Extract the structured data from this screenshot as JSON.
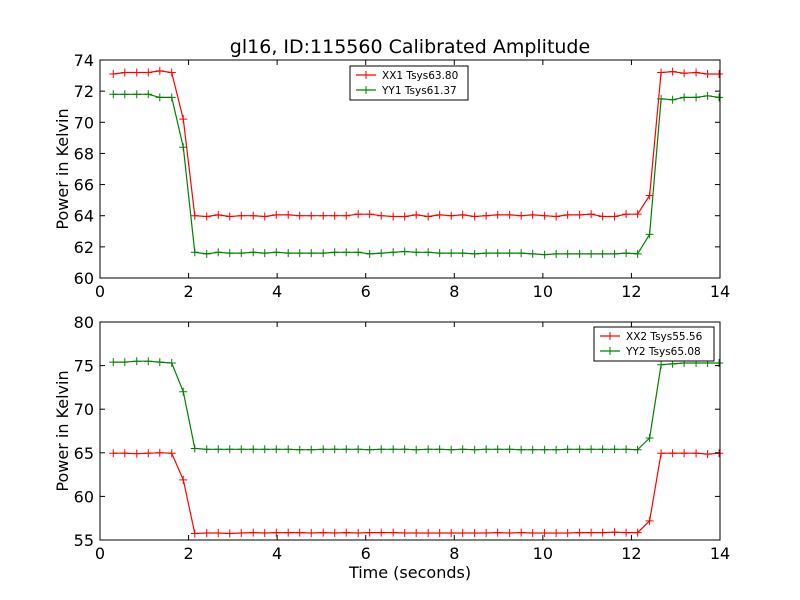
{
  "title": "gl16, ID:115560 Calibrated Amplitude",
  "chart_data": [
    {
      "type": "line",
      "title": "gl16, ID:115560 Calibrated Amplitude",
      "xlabel": "",
      "ylabel": "Power in Kelvin",
      "xlim": [
        0,
        14
      ],
      "ylim": [
        60,
        74
      ],
      "xticks": [
        0,
        2,
        4,
        6,
        8,
        10,
        12,
        14
      ],
      "yticks": [
        60,
        62,
        64,
        66,
        68,
        70,
        72,
        74
      ],
      "grid": false,
      "legend_position": "top-center",
      "x": [
        0.3,
        0.56,
        0.83,
        1.09,
        1.35,
        1.62,
        1.88,
        2.14,
        2.41,
        2.67,
        2.93,
        3.19,
        3.46,
        3.72,
        3.98,
        4.25,
        4.51,
        4.77,
        5.04,
        5.3,
        5.56,
        5.83,
        6.09,
        6.35,
        6.62,
        6.88,
        7.14,
        7.41,
        7.67,
        7.93,
        8.19,
        8.46,
        8.72,
        8.98,
        9.25,
        9.51,
        9.77,
        10.04,
        10.3,
        10.56,
        10.83,
        11.09,
        11.35,
        11.62,
        11.88,
        12.14,
        12.41,
        12.67,
        12.93,
        13.19,
        13.46,
        13.72,
        13.98
      ],
      "series": [
        {
          "name": "XX1 Tsys63.80",
          "color": "#ff0000",
          "values": [
            73.1,
            73.2,
            73.2,
            73.2,
            73.3,
            73.2,
            70.2,
            64.0,
            63.95,
            64.05,
            63.95,
            64.0,
            64.0,
            63.95,
            64.05,
            64.05,
            64.0,
            64.0,
            64.0,
            64.0,
            64.0,
            64.1,
            64.1,
            64.0,
            63.95,
            63.95,
            64.05,
            63.95,
            64.05,
            64.0,
            64.05,
            63.95,
            64.0,
            64.05,
            64.05,
            64.0,
            64.05,
            64.0,
            63.95,
            64.05,
            64.05,
            64.1,
            63.95,
            63.95,
            64.1,
            64.1,
            65.3,
            73.2,
            73.25,
            73.15,
            73.2,
            73.1,
            73.1
          ]
        },
        {
          "name": "YY1 Tsys61.37",
          "color": "#008000",
          "values": [
            71.8,
            71.8,
            71.8,
            71.8,
            71.6,
            71.6,
            68.4,
            61.65,
            61.55,
            61.65,
            61.6,
            61.6,
            61.65,
            61.6,
            61.65,
            61.6,
            61.6,
            61.6,
            61.6,
            61.65,
            61.65,
            61.65,
            61.55,
            61.6,
            61.65,
            61.7,
            61.65,
            61.65,
            61.6,
            61.6,
            61.6,
            61.55,
            61.6,
            61.6,
            61.6,
            61.6,
            61.55,
            61.5,
            61.55,
            61.55,
            61.55,
            61.55,
            61.55,
            61.55,
            61.6,
            61.55,
            62.8,
            71.5,
            71.45,
            71.6,
            71.6,
            71.7,
            71.6
          ]
        }
      ]
    },
    {
      "type": "line",
      "title": "",
      "xlabel": "Time (seconds)",
      "ylabel": "Power in Kelvin",
      "xlim": [
        0,
        14
      ],
      "ylim": [
        55,
        80
      ],
      "xticks": [
        0,
        2,
        4,
        6,
        8,
        10,
        12,
        14
      ],
      "yticks": [
        55,
        60,
        65,
        70,
        75,
        80
      ],
      "grid": false,
      "legend_position": "top-right",
      "x": [
        0.3,
        0.56,
        0.83,
        1.09,
        1.35,
        1.62,
        1.88,
        2.14,
        2.41,
        2.67,
        2.93,
        3.19,
        3.46,
        3.72,
        3.98,
        4.25,
        4.51,
        4.77,
        5.04,
        5.3,
        5.56,
        5.83,
        6.09,
        6.35,
        6.62,
        6.88,
        7.14,
        7.41,
        7.67,
        7.93,
        8.19,
        8.46,
        8.72,
        8.98,
        9.25,
        9.51,
        9.77,
        10.04,
        10.3,
        10.56,
        10.83,
        11.09,
        11.35,
        11.62,
        11.88,
        12.14,
        12.41,
        12.67,
        12.93,
        13.19,
        13.46,
        13.72,
        13.98
      ],
      "series": [
        {
          "name": "XX2 Tsys55.56",
          "color": "#ff0000",
          "values": [
            64.95,
            64.95,
            64.9,
            64.95,
            65.0,
            64.95,
            61.9,
            55.75,
            55.8,
            55.8,
            55.75,
            55.8,
            55.85,
            55.8,
            55.85,
            55.85,
            55.85,
            55.8,
            55.85,
            55.8,
            55.85,
            55.8,
            55.85,
            55.85,
            55.85,
            55.8,
            55.8,
            55.8,
            55.8,
            55.8,
            55.8,
            55.8,
            55.8,
            55.85,
            55.8,
            55.85,
            55.8,
            55.8,
            55.8,
            55.8,
            55.85,
            55.85,
            55.85,
            55.9,
            55.85,
            55.85,
            57.2,
            64.95,
            64.95,
            64.95,
            64.95,
            64.85,
            64.95
          ]
        },
        {
          "name": "YY2 Tsys65.08",
          "color": "#008000",
          "values": [
            75.4,
            75.4,
            75.5,
            75.5,
            75.4,
            75.3,
            72.0,
            65.5,
            65.4,
            65.4,
            65.4,
            65.4,
            65.4,
            65.4,
            65.4,
            65.4,
            65.35,
            65.35,
            65.4,
            65.4,
            65.4,
            65.4,
            65.35,
            65.4,
            65.4,
            65.4,
            65.35,
            65.4,
            65.4,
            65.35,
            65.4,
            65.35,
            65.4,
            65.4,
            65.4,
            65.35,
            65.35,
            65.35,
            65.35,
            65.4,
            65.4,
            65.4,
            65.4,
            65.4,
            65.4,
            65.35,
            66.7,
            75.1,
            75.2,
            75.3,
            75.3,
            75.3,
            75.3
          ]
        }
      ]
    }
  ]
}
